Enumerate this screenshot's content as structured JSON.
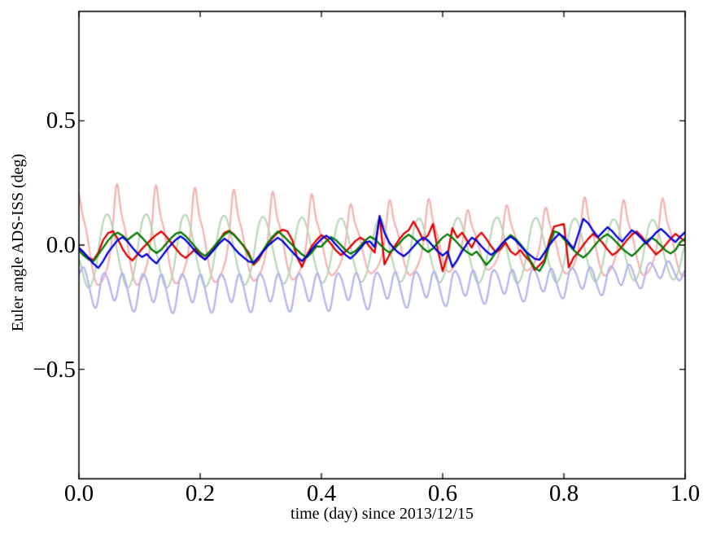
{
  "figure": {
    "background": "#ffffff",
    "frame_color": "#000000"
  },
  "chart_data": {
    "type": "line",
    "title": "",
    "xlabel": "time (day) since 2013/12/15",
    "ylabel": "Euler angle ADS-ISS (deg)",
    "xlim": [
      0.0,
      1.0
    ],
    "ylim": [
      -0.94,
      0.94
    ],
    "xticks": [
      0.0,
      0.2,
      0.4,
      0.6,
      0.8,
      1.0
    ],
    "xtick_labels": [
      "0.0",
      "0.2",
      "0.4",
      "0.6",
      "0.8",
      "1.0"
    ],
    "yticks": [
      -0.5,
      0.0,
      0.5
    ],
    "ytick_labels": [
      "−0.5",
      "0.0",
      "0.5"
    ],
    "grid": false,
    "legend": null,
    "tick_direction": "in",
    "frame": true,
    "series": [
      {
        "name": "faded-red-orbital",
        "color": "#f5b2b2",
        "line_width": 2.2,
        "waveform": {
          "period": 0.0643,
          "t_peak": 0.062,
          "template_phase": [
            0,
            0.04,
            0.08,
            0.12,
            0.18,
            0.24,
            0.3,
            0.36,
            0.42,
            0.5,
            0.58,
            0.66,
            0.74,
            0.8,
            0.86,
            0.92,
            0.96,
            1.0
          ],
          "template_value": [
            0.29,
            0.245,
            0.16,
            0.115,
            0.095,
            0.05,
            -0.015,
            -0.08,
            -0.125,
            -0.165,
            -0.155,
            -0.135,
            -0.105,
            -0.065,
            -0.02,
            0.09,
            0.2,
            0.29
          ],
          "envelope_t": [
            0,
            0.05,
            0.12,
            0.2,
            0.3,
            0.38,
            0.45,
            0.51,
            0.58,
            0.64,
            0.71,
            0.77,
            0.83,
            0.9,
            0.96,
            1.0
          ],
          "envelope": [
            1.0,
            1.02,
            1.0,
            0.95,
            0.9,
            0.86,
            0.68,
            0.75,
            0.77,
            0.58,
            0.67,
            0.62,
            0.8,
            0.75,
            0.78,
            0.78
          ]
        }
      },
      {
        "name": "faded-green-orbital",
        "color": "#b8d8b8",
        "line_width": 2.2,
        "waveform": {
          "period": 0.0643,
          "t_peak": 0.047,
          "template_phase": [
            0,
            0.06,
            0.12,
            0.2,
            0.3,
            0.4,
            0.5,
            0.6,
            0.7,
            0.78,
            0.85,
            0.92,
            1.0
          ],
          "template_value": [
            0.13,
            0.115,
            0.08,
            0.02,
            -0.065,
            -0.135,
            -0.18,
            -0.16,
            -0.1,
            -0.015,
            0.07,
            0.115,
            0.13
          ],
          "envelope_t": [
            0,
            0.15,
            0.3,
            0.5,
            0.7,
            0.85,
            1.0
          ],
          "envelope": [
            1.0,
            1.0,
            0.92,
            0.85,
            0.9,
            0.85,
            0.8
          ]
        }
      },
      {
        "name": "faded-blue-orbital",
        "color": "#b4b4f0",
        "line_width": 2.2,
        "waveform": {
          "period": 0.0643,
          "t_peak": 0.062,
          "template_phase": [
            0,
            0.06,
            0.13,
            0.2,
            0.28,
            0.36,
            0.45,
            0.52,
            0.58,
            0.65,
            0.72,
            0.8,
            0.88,
            0.94,
            1.0
          ],
          "template_value": [
            -0.225,
            -0.16,
            -0.105,
            -0.125,
            -0.185,
            -0.245,
            -0.29,
            -0.25,
            -0.165,
            -0.11,
            -0.12,
            -0.15,
            -0.21,
            -0.245,
            -0.225
          ],
          "envelope_t": [
            0,
            0.03,
            0.15,
            0.4,
            0.6,
            0.75,
            0.88,
            1.0
          ],
          "envelope": [
            0.7,
            0.95,
            1.0,
            0.97,
            0.9,
            0.82,
            0.72,
            0.5
          ]
        }
      },
      {
        "name": "red-euler-angle",
        "color": "#e00000",
        "line_width": 2.3,
        "x_start": 0.0,
        "x_step": 0.008,
        "y": [
          -0.01,
          -0.03,
          -0.052,
          -0.06,
          -0.03,
          0.02,
          0.048,
          0.056,
          0.025,
          -0.015,
          -0.045,
          -0.062,
          -0.04,
          -0.015,
          0.005,
          0.025,
          0.042,
          0.055,
          0.035,
          0.01,
          -0.015,
          -0.038,
          -0.052,
          -0.035,
          -0.015,
          -0.04,
          -0.058,
          -0.035,
          -0.008,
          0.02,
          0.05,
          0.058,
          0.042,
          0.02,
          -0.005,
          -0.03,
          -0.08,
          -0.06,
          -0.025,
          0.005,
          0.03,
          0.05,
          0.062,
          0.055,
          0.02,
          -0.05,
          -0.088,
          -0.04,
          -0.005,
          0.02,
          0.04,
          0.026,
          0.004,
          -0.022,
          -0.04,
          -0.026,
          -0.006,
          0.016,
          0.03,
          0.018,
          -0.008,
          -0.03,
          0.118,
          -0.078,
          -0.04,
          -0.008,
          0.022,
          0.046,
          0.06,
          0.095,
          0.06,
          0.02,
          0.04,
          0.085,
          -0.02,
          -0.105,
          -0.04,
          0.068,
          0.03,
          0.05,
          0.02,
          -0.01,
          0.03,
          0.05,
          0.025,
          -0.005,
          -0.03,
          -0.015,
          0.01,
          -0.025,
          -0.04,
          -0.02,
          -0.045,
          -0.065,
          -0.1,
          -0.08,
          -0.06,
          0.02,
          0.075,
          0.08,
          0.085,
          -0.09,
          -0.05,
          -0.028,
          0.0,
          0.025,
          0.045,
          0.03,
          0.008,
          -0.018,
          -0.04,
          -0.028,
          -0.005,
          0.02,
          0.042,
          0.055,
          0.035,
          0.01,
          -0.015,
          -0.038,
          -0.022,
          0.002,
          0.025,
          0.045,
          0.03,
          0.015
        ]
      },
      {
        "name": "green-euler-angle",
        "color": "#007a00",
        "line_width": 2.3,
        "x_start": 0.0,
        "x_step": 0.008,
        "y": [
          -0.022,
          -0.042,
          -0.058,
          -0.065,
          -0.038,
          -0.01,
          0.018,
          0.04,
          0.05,
          0.038,
          0.02,
          0.036,
          0.05,
          0.03,
          0.008,
          -0.018,
          -0.032,
          -0.018,
          0.006,
          0.028,
          0.046,
          0.052,
          0.036,
          0.015,
          -0.008,
          -0.03,
          -0.044,
          -0.026,
          -0.002,
          0.022,
          0.042,
          0.055,
          0.04,
          0.018,
          -0.004,
          -0.04,
          -0.075,
          -0.05,
          -0.02,
          0.01,
          0.035,
          0.055,
          0.04,
          0.02,
          0.0,
          -0.02,
          -0.038,
          -0.05,
          -0.03,
          -0.005,
          -0.006,
          0.016,
          0.032,
          0.02,
          0.0,
          -0.02,
          -0.035,
          -0.024,
          -0.004,
          0.018,
          0.034,
          0.024,
          0.004,
          -0.016,
          -0.03,
          -0.016,
          0.006,
          0.028,
          0.042,
          0.028,
          0.008,
          -0.014,
          -0.028,
          -0.014,
          0.008,
          0.03,
          0.044,
          0.03,
          0.01,
          -0.012,
          -0.028,
          -0.04,
          -0.026,
          -0.052,
          -0.08,
          -0.058,
          -0.028,
          -0.002,
          0.022,
          0.04,
          0.026,
          0.004,
          -0.02,
          -0.06,
          -0.092,
          -0.104,
          -0.07,
          0.0,
          0.055,
          0.048,
          0.024,
          0.002,
          -0.02,
          -0.038,
          -0.05,
          -0.034,
          -0.01,
          0.014,
          0.032,
          0.044,
          0.028,
          0.008,
          -0.014,
          -0.03,
          -0.044,
          -0.028,
          -0.006,
          0.016,
          0.03,
          0.018,
          -0.002,
          -0.022,
          -0.034,
          -0.02,
          0.012,
          0.026
        ]
      },
      {
        "name": "blue-euler-angle",
        "color": "#0000dd",
        "line_width": 2.3,
        "x_start": 0.0,
        "x_step": 0.008,
        "y": [
          -0.012,
          -0.03,
          -0.052,
          -0.075,
          -0.092,
          -0.064,
          -0.03,
          -0.004,
          0.02,
          0.032,
          0.015,
          -0.01,
          -0.032,
          -0.048,
          -0.036,
          -0.058,
          -0.074,
          -0.048,
          -0.022,
          0.002,
          0.022,
          0.035,
          0.02,
          -0.002,
          -0.025,
          -0.044,
          -0.058,
          -0.038,
          -0.015,
          0.008,
          0.026,
          0.012,
          -0.012,
          -0.034,
          -0.05,
          -0.066,
          -0.07,
          -0.048,
          -0.025,
          -0.002,
          0.014,
          0.03,
          0.016,
          -0.006,
          -0.028,
          -0.048,
          -0.064,
          -0.044,
          -0.018,
          0.004,
          0.024,
          0.038,
          0.024,
          0.002,
          -0.02,
          -0.04,
          -0.054,
          -0.036,
          -0.014,
          0.01,
          0.015,
          -0.008,
          0.115,
          0.05,
          0.01,
          -0.015,
          -0.032,
          -0.045,
          -0.028,
          -0.006,
          0.016,
          0.03,
          0.018,
          -0.004,
          -0.026,
          -0.042,
          -0.026,
          -0.088,
          -0.06,
          -0.025,
          0.005,
          0.03,
          0.018,
          -0.005,
          -0.025,
          -0.04,
          -0.024,
          0.0,
          0.02,
          0.034,
          0.02,
          -0.002,
          -0.024,
          -0.04,
          -0.055,
          -0.059,
          -0.03,
          0.0,
          0.025,
          0.045,
          0.032,
          0.01,
          -0.015,
          0.045,
          0.105,
          0.088,
          0.058,
          0.032,
          0.052,
          0.072,
          0.055,
          0.032,
          0.014,
          0.038,
          0.06,
          0.046,
          0.026,
          0.006,
          0.028,
          0.05,
          0.065,
          0.048,
          0.028,
          0.012,
          0.034,
          0.052
        ]
      }
    ]
  }
}
